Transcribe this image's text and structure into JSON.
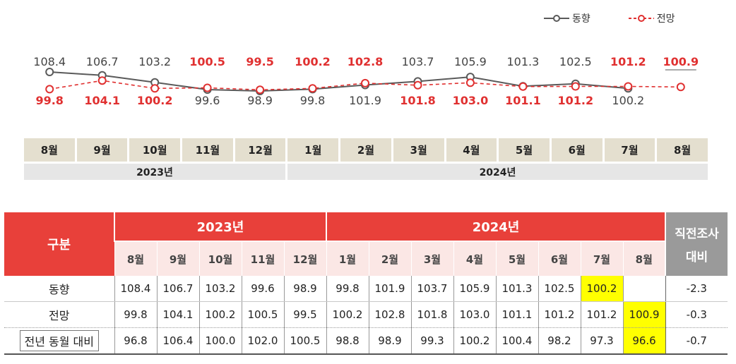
{
  "legend": {
    "trend_label": "동향",
    "outlook_label": "전망"
  },
  "colors": {
    "trend": "#5a5a5a",
    "outlook": "#e03030",
    "highlight": "#ffff00",
    "header_red": "#e8403a"
  },
  "chart_data": {
    "type": "line",
    "categories": [
      "8월",
      "9월",
      "10월",
      "11월",
      "12월",
      "1월",
      "2월",
      "3월",
      "4월",
      "5월",
      "6월",
      "7월",
      "8월"
    ],
    "year_groups": [
      {
        "label": "2023년",
        "months": 5
      },
      {
        "label": "2024년",
        "months": 8
      }
    ],
    "series": [
      {
        "name": "동향",
        "values": [
          108.4,
          106.7,
          103.2,
          99.6,
          98.9,
          99.8,
          101.9,
          103.7,
          105.9,
          101.3,
          102.5,
          100.2,
          null
        ],
        "labels": [
          "108.4",
          "106.7",
          "103.2",
          "99.6",
          "98.9",
          "99.8",
          "101.9",
          "103.7",
          "105.9",
          "101.3",
          "102.5",
          "100.2",
          ""
        ]
      },
      {
        "name": "전망",
        "values": [
          99.8,
          104.1,
          100.2,
          100.5,
          99.5,
          100.2,
          102.8,
          101.8,
          103.0,
          101.1,
          101.2,
          101.2,
          100.9
        ],
        "labels": [
          "99.8",
          "104.1",
          "100.2",
          "100.5",
          "99.5",
          "100.2",
          "102.8",
          "101.8",
          "103.0",
          "101.1",
          "101.2",
          "101.2",
          "100.9"
        ]
      }
    ]
  },
  "table": {
    "header_label": "구분",
    "year_2023": "2023년",
    "year_2024": "2024년",
    "last_col_label": "직전조사\n대비",
    "last_col_line1": "직전조사",
    "last_col_line2": "대비",
    "months": [
      "8월",
      "9월",
      "10월",
      "11월",
      "12월",
      "1월",
      "2월",
      "3월",
      "4월",
      "5월",
      "6월",
      "7월",
      "8월"
    ],
    "rows": [
      {
        "label": "동향",
        "cells": [
          "108.4",
          "106.7",
          "103.2",
          "99.6",
          "98.9",
          "99.8",
          "101.9",
          "103.7",
          "105.9",
          "101.3",
          "102.5",
          "100.2",
          ""
        ],
        "change": "-2.3",
        "highlight_index": 11
      },
      {
        "label": "전망",
        "cells": [
          "99.8",
          "104.1",
          "100.2",
          "100.5",
          "99.5",
          "100.2",
          "102.8",
          "101.8",
          "103.0",
          "101.1",
          "101.2",
          "101.2",
          "100.9"
        ],
        "change": "-0.3",
        "highlight_index": 12
      },
      {
        "label": "전년 동월 대비",
        "cells": [
          "96.8",
          "106.4",
          "100.0",
          "102.0",
          "100.5",
          "98.8",
          "98.9",
          "99.3",
          "100.2",
          "100.4",
          "98.2",
          "97.3",
          "96.6"
        ],
        "change": "-0.7",
        "highlight_index": 12
      }
    ]
  }
}
